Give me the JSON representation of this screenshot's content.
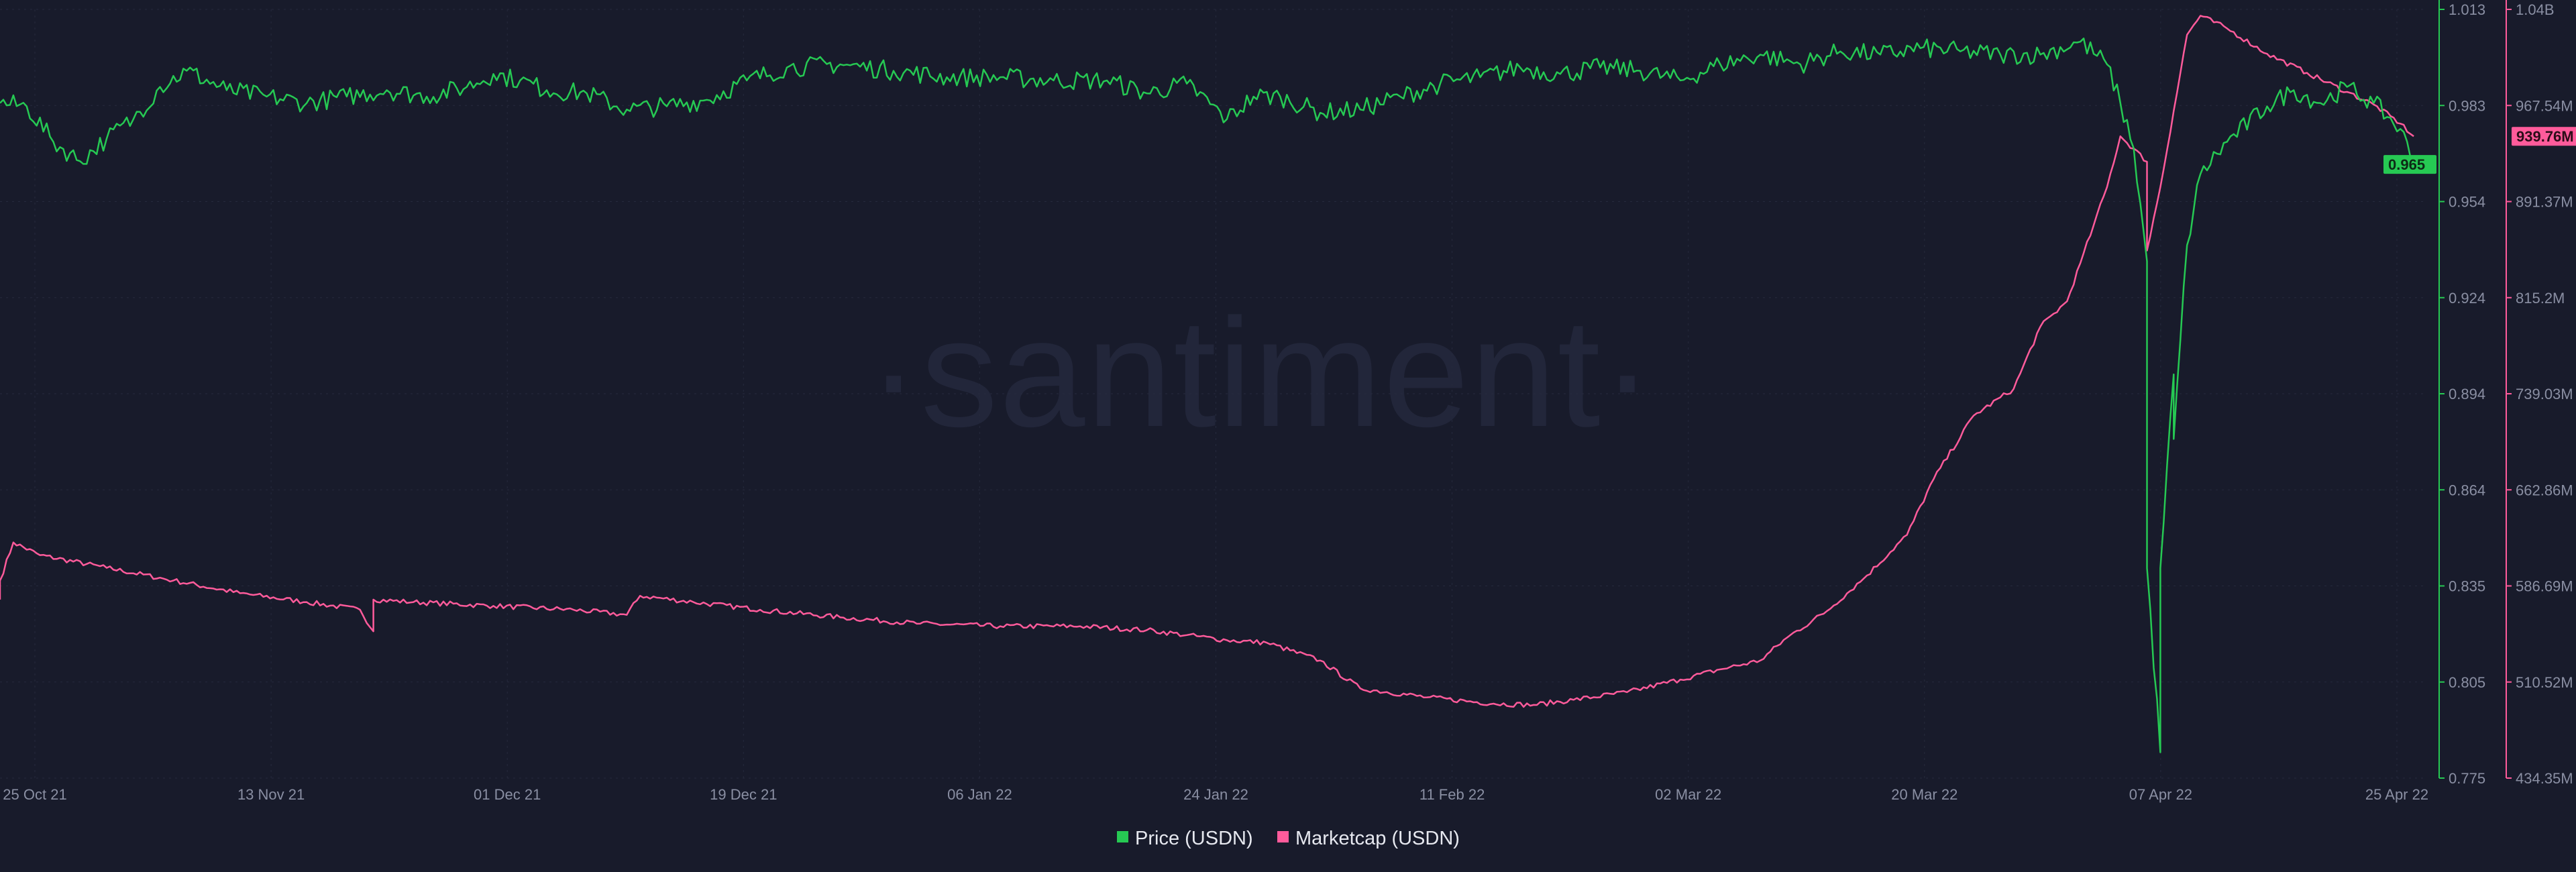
{
  "watermark": "·santiment·",
  "chart_data": {
    "type": "line",
    "x_ticks": [
      "25 Oct 21",
      "13 Nov 21",
      "01 Dec 21",
      "19 Dec 21",
      "06 Jan 22",
      "24 Jan 22",
      "11 Feb 22",
      "02 Mar 22",
      "20 Mar 22",
      "07 Apr 22",
      "25 Apr 22"
    ],
    "x_range": [
      "2021-10-25",
      "2022-04-25"
    ],
    "grid": true,
    "legend_position": "bottom-center",
    "colors": {
      "price": "#26c953",
      "marketcap": "#ff5b9b",
      "background": "#181b2b"
    },
    "y_axes": {
      "price": {
        "ticks": [
          "1.013",
          "0.983",
          "0.954",
          "0.924",
          "0.894",
          "0.864",
          "0.835",
          "0.805",
          "0.775"
        ],
        "range": [
          0.775,
          1.013
        ]
      },
      "marketcap": {
        "ticks": [
          "1.04B",
          "967.54M",
          "891.37M",
          "815.2M",
          "739.03M",
          "662.86M",
          "586.69M",
          "510.52M",
          "434.35M"
        ],
        "range": [
          434.35,
          1040
        ],
        "unit": "M"
      }
    },
    "series": [
      {
        "name": "Price (USDN)",
        "axis": "price",
        "current_label": "0.965",
        "points": [
          [
            "2021-10-25",
            0.984
          ],
          [
            "2021-10-27",
            0.983
          ],
          [
            "2021-10-29",
            0.972
          ],
          [
            "2021-10-31",
            0.966
          ],
          [
            "2021-11-02",
            0.973
          ],
          [
            "2021-11-04",
            0.979
          ],
          [
            "2021-11-06",
            0.989
          ],
          [
            "2021-11-08",
            0.994
          ],
          [
            "2021-11-11",
            0.988
          ],
          [
            "2021-11-14",
            0.986
          ],
          [
            "2021-11-17",
            0.984
          ],
          [
            "2021-11-20",
            0.986
          ],
          [
            "2021-11-23",
            0.988
          ],
          [
            "2021-11-26",
            0.986
          ],
          [
            "2021-11-29",
            0.989
          ],
          [
            "2021-12-01",
            0.993
          ],
          [
            "2021-12-03",
            0.991
          ],
          [
            "2021-12-05",
            0.988
          ],
          [
            "2021-12-08",
            0.987
          ],
          [
            "2021-12-11",
            0.982
          ],
          [
            "2021-12-14",
            0.983
          ],
          [
            "2021-12-17",
            0.985
          ],
          [
            "2021-12-20",
            0.991
          ],
          [
            "2021-12-23",
            0.995
          ],
          [
            "2021-12-27",
            0.996
          ],
          [
            "2021-12-31",
            0.994
          ],
          [
            "2022-01-04",
            0.992
          ],
          [
            "2022-01-08",
            0.992
          ],
          [
            "2022-01-12",
            0.991
          ],
          [
            "2022-01-16",
            0.991
          ],
          [
            "2022-01-19",
            0.987
          ],
          [
            "2022-01-22",
            0.99
          ],
          [
            "2022-01-25",
            0.979
          ],
          [
            "2022-01-27",
            0.986
          ],
          [
            "2022-01-29",
            0.986
          ],
          [
            "2022-02-01",
            0.981
          ],
          [
            "2022-02-04",
            0.982
          ],
          [
            "2022-02-07",
            0.986
          ],
          [
            "2022-02-10",
            0.99
          ],
          [
            "2022-02-13",
            0.992
          ],
          [
            "2022-02-16",
            0.995
          ],
          [
            "2022-02-19",
            0.993
          ],
          [
            "2022-02-22",
            0.995
          ],
          [
            "2022-02-25",
            0.994
          ],
          [
            "2022-02-28",
            0.991
          ],
          [
            "2022-03-03",
            0.996
          ],
          [
            "2022-03-06",
            0.999
          ],
          [
            "2022-03-09",
            0.996
          ],
          [
            "2022-03-12",
            1.0
          ],
          [
            "2022-03-15",
            0.999
          ],
          [
            "2022-03-18",
            1.001
          ],
          [
            "2022-03-21",
            1.0
          ],
          [
            "2022-03-24",
            0.999
          ],
          [
            "2022-03-27",
            0.999
          ],
          [
            "2022-03-30",
            1.003
          ],
          [
            "2022-04-01",
            0.996
          ],
          [
            "2022-04-02",
            0.984
          ],
          [
            "2022-04-03",
            0.97
          ],
          [
            "2022-04-04",
            0.935
          ],
          [
            "2022-04-04",
            0.84
          ],
          [
            "2022-04-05",
            0.783
          ],
          [
            "2022-04-05",
            0.84
          ],
          [
            "2022-04-06",
            0.9
          ],
          [
            "2022-04-06",
            0.88
          ],
          [
            "2022-04-07",
            0.94
          ],
          [
            "2022-04-08",
            0.962
          ],
          [
            "2022-04-10",
            0.972
          ],
          [
            "2022-04-13",
            0.983
          ],
          [
            "2022-04-15",
            0.988
          ],
          [
            "2022-04-17",
            0.984
          ],
          [
            "2022-04-19",
            0.989
          ],
          [
            "2022-04-21",
            0.984
          ],
          [
            "2022-04-23",
            0.976
          ],
          [
            "2022-04-24",
            0.965
          ]
        ]
      },
      {
        "name": "Marketcap (USDN)",
        "axis": "marketcap",
        "current_label": "939.76M",
        "points": [
          [
            "2021-10-25",
            575
          ],
          [
            "2021-10-25",
            590
          ],
          [
            "2021-10-26",
            620
          ],
          [
            "2021-10-28",
            610
          ],
          [
            "2021-11-02",
            600
          ],
          [
            "2021-11-07",
            590
          ],
          [
            "2021-11-12",
            580
          ],
          [
            "2021-11-17",
            573
          ],
          [
            "2021-11-21",
            567
          ],
          [
            "2021-11-22",
            550
          ],
          [
            "2021-11-22",
            575
          ],
          [
            "2021-11-25",
            573
          ],
          [
            "2021-12-01",
            570
          ],
          [
            "2021-12-07",
            567
          ],
          [
            "2021-12-11",
            563
          ],
          [
            "2021-12-12",
            578
          ],
          [
            "2021-12-16",
            573
          ],
          [
            "2021-12-21",
            567
          ],
          [
            "2021-12-27",
            561
          ],
          [
            "2022-01-02",
            556
          ],
          [
            "2022-01-08",
            554
          ],
          [
            "2022-01-14",
            554
          ],
          [
            "2022-01-19",
            551
          ],
          [
            "2022-01-22",
            547
          ],
          [
            "2022-01-25",
            543
          ],
          [
            "2022-01-28",
            541
          ],
          [
            "2022-02-01",
            527
          ],
          [
            "2022-02-04",
            505
          ],
          [
            "2022-02-09",
            498
          ],
          [
            "2022-02-14",
            493
          ],
          [
            "2022-02-17",
            492
          ],
          [
            "2022-02-20",
            496
          ],
          [
            "2022-02-24",
            502
          ],
          [
            "2022-02-28",
            512
          ],
          [
            "2022-03-03",
            520
          ],
          [
            "2022-03-06",
            527
          ],
          [
            "2022-03-08",
            545
          ],
          [
            "2022-03-11",
            566
          ],
          [
            "2022-03-14",
            594
          ],
          [
            "2022-03-17",
            626
          ],
          [
            "2022-03-19",
            670
          ],
          [
            "2022-03-22",
            720
          ],
          [
            "2022-03-25",
            741
          ],
          [
            "2022-03-27",
            790
          ],
          [
            "2022-03-29",
            810
          ],
          [
            "2022-03-30",
            840
          ],
          [
            "2022-03-31",
            870
          ],
          [
            "2022-04-01",
            900
          ],
          [
            "2022-04-02",
            940
          ],
          [
            "2022-04-04",
            920
          ],
          [
            "2022-04-04",
            850
          ],
          [
            "2022-04-05",
            900
          ],
          [
            "2022-04-06",
            960
          ],
          [
            "2022-04-07",
            1020
          ],
          [
            "2022-04-08",
            1035
          ],
          [
            "2022-04-10",
            1025
          ],
          [
            "2022-04-13",
            1005
          ],
          [
            "2022-04-16",
            990
          ],
          [
            "2022-04-19",
            975
          ],
          [
            "2022-04-21",
            965
          ],
          [
            "2022-04-23",
            950
          ],
          [
            "2022-04-24",
            940
          ]
        ]
      }
    ]
  }
}
